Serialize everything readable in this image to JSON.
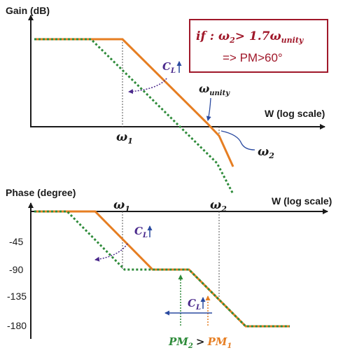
{
  "gain_plot": {
    "y_axis_label": "Gain (dB)",
    "x_axis_label": "W (log scale)",
    "omega1": "ω",
    "omega1_sub": "1",
    "omega_unity": "ω",
    "omega_unity_sub": "unity",
    "omega2": "ω",
    "omega2_sub": "2",
    "cl_label": "C",
    "cl_sub": "L",
    "condition_box": {
      "line1_prefix": "if : ω",
      "line1_sub2": "2",
      "line1_mid": "> 1.7ω",
      "line1_sub_unity": "unity",
      "line2": "=> PM>60°"
    }
  },
  "phase_plot": {
    "y_axis_label": "Phase (degree)",
    "x_axis_label": "W (log scale)",
    "omega1": "ω",
    "omega1_sub": "1",
    "omega2": "ω",
    "omega2_sub": "2",
    "y_ticks": [
      "-45",
      "-90",
      "-135",
      "-180"
    ],
    "cl_label": "C",
    "cl_sub": "L",
    "pm2": "PM",
    "pm2_sub": "2",
    "gt": ">",
    "pm1": "PM",
    "pm1_sub": "1"
  },
  "colors": {
    "orange": "#e67e22",
    "green": "#2e8b3a",
    "box_border": "#a0182a",
    "box_text": "#a0182a",
    "arrow_purple": "#4b2a8c",
    "arrow_blue": "#2a4aa0"
  }
}
